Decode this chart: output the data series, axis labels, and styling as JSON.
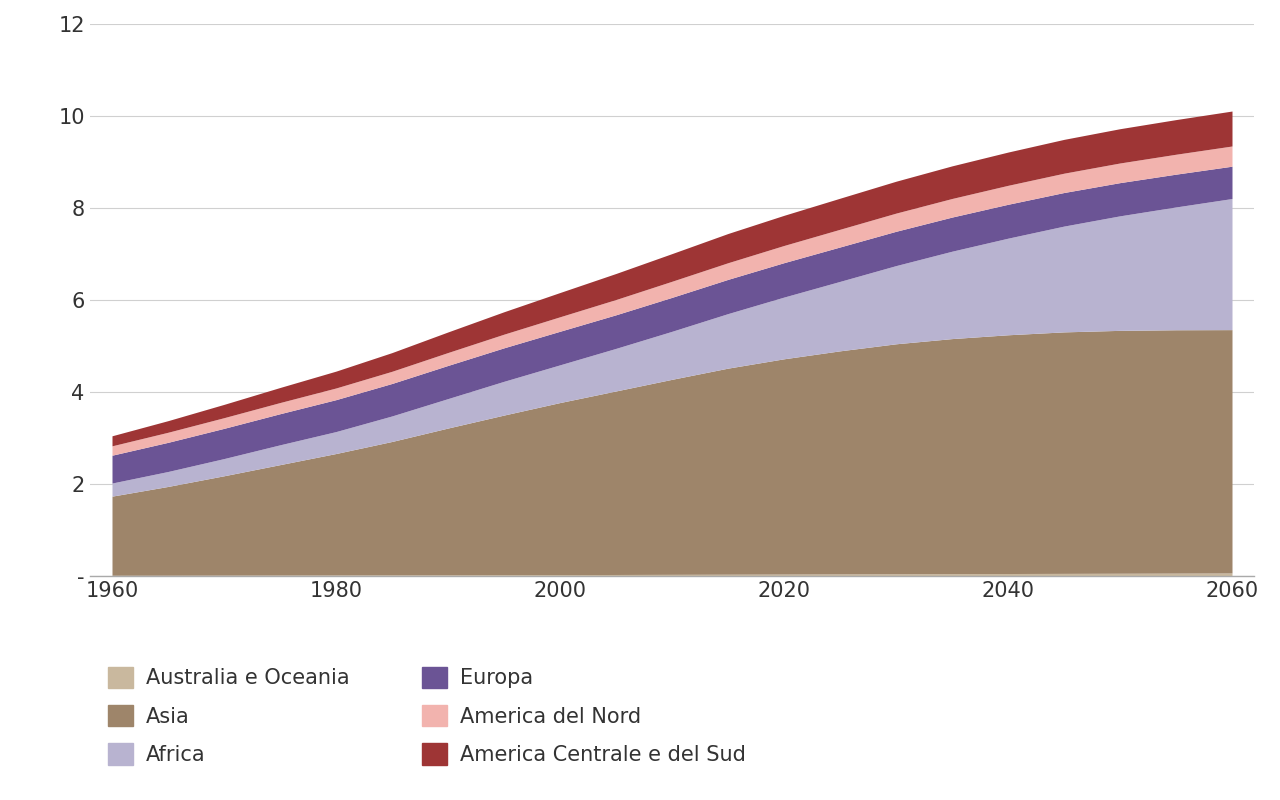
{
  "years": [
    1960,
    1965,
    1970,
    1975,
    1980,
    1985,
    1990,
    1995,
    2000,
    2005,
    2010,
    2015,
    2020,
    2025,
    2030,
    2035,
    2040,
    2045,
    2050,
    2055,
    2060
  ],
  "series": {
    "Australia e Oceania": [
      0.016,
      0.017,
      0.019,
      0.021,
      0.023,
      0.025,
      0.027,
      0.029,
      0.031,
      0.033,
      0.036,
      0.039,
      0.042,
      0.045,
      0.048,
      0.051,
      0.054,
      0.057,
      0.06,
      0.063,
      0.066
    ],
    "Asia": [
      1.72,
      1.93,
      2.16,
      2.4,
      2.64,
      2.9,
      3.19,
      3.47,
      3.74,
      3.99,
      4.24,
      4.48,
      4.68,
      4.85,
      5.0,
      5.11,
      5.19,
      5.25,
      5.28,
      5.29,
      5.29
    ],
    "Africa": [
      0.285,
      0.325,
      0.374,
      0.431,
      0.477,
      0.555,
      0.64,
      0.734,
      0.82,
      0.926,
      1.044,
      1.186,
      1.342,
      1.51,
      1.7,
      1.9,
      2.1,
      2.3,
      2.49,
      2.67,
      2.85
    ],
    "Europa": [
      0.605,
      0.634,
      0.657,
      0.676,
      0.694,
      0.706,
      0.721,
      0.728,
      0.73,
      0.73,
      0.738,
      0.744,
      0.748,
      0.748,
      0.746,
      0.742,
      0.737,
      0.73,
      0.722,
      0.713,
      0.703
    ],
    "America del Nord": [
      0.204,
      0.219,
      0.232,
      0.243,
      0.254,
      0.265,
      0.281,
      0.297,
      0.315,
      0.332,
      0.35,
      0.362,
      0.374,
      0.385,
      0.395,
      0.404,
      0.412,
      0.42,
      0.427,
      0.433,
      0.439
    ],
    "America Centrale e del Sud": [
      0.218,
      0.252,
      0.289,
      0.327,
      0.366,
      0.406,
      0.447,
      0.487,
      0.527,
      0.566,
      0.601,
      0.635,
      0.655,
      0.675,
      0.693,
      0.709,
      0.723,
      0.735,
      0.745,
      0.753,
      0.76
    ]
  },
  "colors": {
    "Australia e Oceania": "#c9b89e",
    "Asia": "#9e856a",
    "Africa": "#b8b3d0",
    "Europa": "#6b5495",
    "America del Nord": "#f2b3ae",
    "America Centrale e del Sud": "#9e3535"
  },
  "stack_order": [
    "Australia e Oceania",
    "Asia",
    "Africa",
    "Europa",
    "America del Nord",
    "America Centrale e del Sud"
  ],
  "ylim": [
    0,
    12
  ],
  "yticks": [
    0,
    2,
    4,
    6,
    8,
    10,
    12
  ],
  "ytick_labels": [
    "-",
    "2",
    "4",
    "6",
    "8",
    "10",
    "12"
  ],
  "xlim": [
    1958,
    2062
  ],
  "xticks": [
    1960,
    1980,
    2000,
    2020,
    2040,
    2060
  ],
  "background_color": "#ffffff",
  "grid_color": "#d0d0d0",
  "legend_fontsize": 15,
  "legend_order_left": [
    "Australia e Oceania",
    "Africa",
    "America del Nord"
  ],
  "legend_order_right": [
    "Asia",
    "Europa",
    "America Centrale e del Sud"
  ]
}
